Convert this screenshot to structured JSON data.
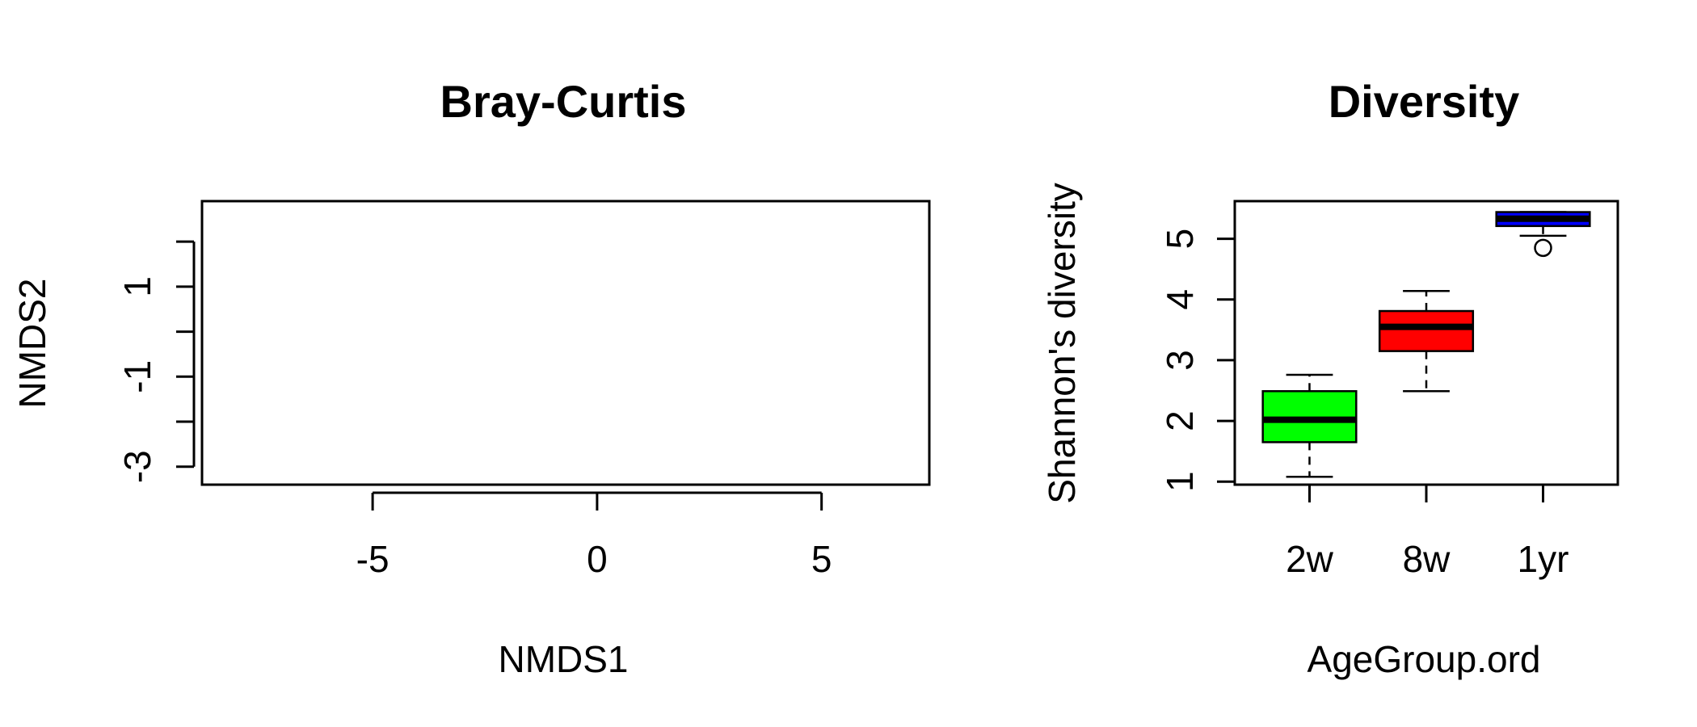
{
  "chart_data": [
    {
      "type": "scatter",
      "title": "Bray-Curtis",
      "xlabel": "NMDS1",
      "ylabel": "NMDS2",
      "xlim": [
        -8.8,
        7.4
      ],
      "ylim": [
        -3.4,
        2.9
      ],
      "xticks": [
        -5,
        0,
        5
      ],
      "yticks": [
        -3,
        -2,
        -1,
        0,
        1,
        2
      ],
      "ytick_labels": [
        "-3",
        "",
        "-1",
        "",
        "1",
        ""
      ],
      "points": []
    },
    {
      "type": "boxplot",
      "title": "Diversity",
      "xlabel": "AgeGroup.ord",
      "ylabel": "Shannon's diversity",
      "ylim": [
        0.95,
        5.62
      ],
      "yticks": [
        1,
        2,
        3,
        4,
        5
      ],
      "categories": [
        "2w",
        "8w",
        "1yr"
      ],
      "boxes": [
        {
          "name": "2w",
          "color": "#00ff00",
          "whisker_low": 1.08,
          "q1": 1.65,
          "median": 2.02,
          "q3": 2.49,
          "whisker_high": 2.76,
          "outliers": []
        },
        {
          "name": "8w",
          "color": "#ff0000",
          "whisker_low": 2.49,
          "q1": 3.15,
          "median": 3.55,
          "q3": 3.81,
          "whisker_high": 4.14,
          "outliers": []
        },
        {
          "name": "1yr",
          "color": "#0000ff",
          "whisker_low": 5.05,
          "q1": 5.21,
          "median": 5.33,
          "q3": 5.44,
          "whisker_high": 5.44,
          "outliers": [
            4.85
          ]
        }
      ]
    }
  ]
}
